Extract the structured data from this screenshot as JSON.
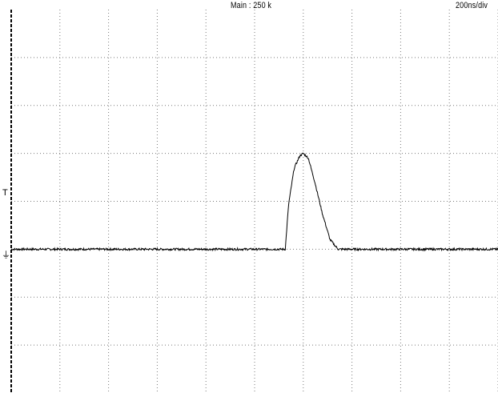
{
  "header": {
    "record_label": "Main : 250 k",
    "timebase_label": "200ns/div"
  },
  "markers": {
    "trigger_level": "T",
    "ground": "⏚"
  },
  "colors": {
    "background": "#ffffff",
    "grid": "#7a7a7a",
    "trace": "#000000",
    "left_axis": "#000000"
  },
  "chart_data": {
    "type": "line",
    "title": "",
    "xlabel": "",
    "ylabel": "",
    "grid": true,
    "divisions": {
      "x": 10,
      "y": 8
    },
    "xlim": [
      0,
      2000
    ],
    "ylim": [
      -3,
      5
    ],
    "x_unit": "ns",
    "y_unit": "div",
    "trigger_level_div": 1,
    "series": [
      {
        "name": "",
        "x": [
          0,
          1100,
          1126,
          1140,
          1163,
          1186,
          1200,
          1221,
          1250,
          1278,
          1310,
          1343,
          1500,
          2000
        ],
        "y": [
          0,
          0,
          0,
          0.95,
          1.7,
          1.95,
          2.0,
          1.9,
          1.35,
          0.75,
          0.2,
          0,
          0,
          0
        ]
      }
    ]
  }
}
